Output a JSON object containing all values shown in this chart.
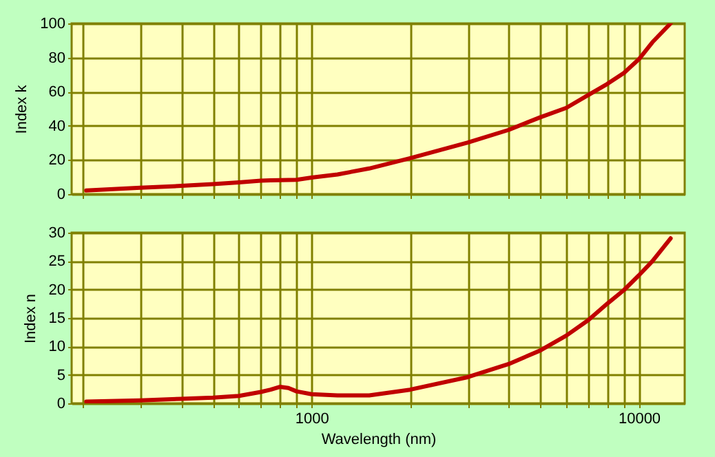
{
  "chart_data": [
    {
      "type": "line",
      "ylabel": "Index k",
      "x": [
        205,
        300,
        400,
        500,
        600,
        700,
        750,
        800,
        850,
        900,
        1000,
        1200,
        1500,
        2000,
        3000,
        4000,
        5000,
        6000,
        7000,
        8000,
        9000,
        10000,
        11000,
        12500
      ],
      "series": [
        {
          "color": "#c00000",
          "values": [
            2.1,
            3.7,
            4.8,
            5.8,
            6.9,
            7.9,
            8.1,
            8.2,
            8.3,
            8.4,
            9.7,
            11.5,
            15,
            21,
            30.2,
            37.6,
            45,
            50.5,
            58,
            64.5,
            71,
            79,
            89,
            100
          ]
        }
      ],
      "xlim": [
        185,
        13800
      ],
      "ylim": [
        0,
        100
      ],
      "yticks": [
        0,
        20,
        40,
        60,
        80,
        100
      ],
      "xticks": [
        {
          "value": 200,
          "label": null
        },
        {
          "value": 300,
          "label": null
        },
        {
          "value": 400,
          "label": null
        },
        {
          "value": 500,
          "label": null
        },
        {
          "value": 600,
          "label": null
        },
        {
          "value": 700,
          "label": null
        },
        {
          "value": 800,
          "label": null
        },
        {
          "value": 900,
          "label": null
        },
        {
          "value": 1000,
          "label": null
        },
        {
          "value": 2000,
          "label": null
        },
        {
          "value": 3000,
          "label": null
        },
        {
          "value": 4000,
          "label": null
        },
        {
          "value": 5000,
          "label": null
        },
        {
          "value": 6000,
          "label": null
        },
        {
          "value": 7000,
          "label": null
        },
        {
          "value": 8000,
          "label": null
        },
        {
          "value": 9000,
          "label": null
        },
        {
          "value": 10000,
          "label": null
        }
      ],
      "log": "x",
      "grid": true,
      "tick_labels": "y"
    },
    {
      "type": "line",
      "xlabel": "Wavelength (nm)",
      "ylabel": "Index n",
      "x": [
        205,
        300,
        400,
        500,
        600,
        700,
        750,
        800,
        850,
        900,
        1000,
        1200,
        1500,
        2000,
        3000,
        4000,
        5000,
        6000,
        7000,
        8000,
        9000,
        10000,
        11000,
        12500
      ],
      "series": [
        {
          "color": "#c00000",
          "values": [
            0.3,
            0.5,
            0.8,
            1.0,
            1.3,
            2.0,
            2.4,
            2.9,
            2.7,
            2.1,
            1.6,
            1.4,
            1.4,
            2.4,
            4.6,
            6.9,
            9.3,
            11.9,
            14.6,
            17.5,
            19.9,
            22.5,
            25,
            29
          ]
        }
      ],
      "xlim": [
        185,
        13800
      ],
      "ylim": [
        0,
        30
      ],
      "yticks": [
        0,
        5,
        10,
        15,
        20,
        25,
        30
      ],
      "xticks": [
        {
          "value": 200,
          "label": null
        },
        {
          "value": 300,
          "label": null
        },
        {
          "value": 400,
          "label": null
        },
        {
          "value": 500,
          "label": null
        },
        {
          "value": 600,
          "label": null
        },
        {
          "value": 700,
          "label": null
        },
        {
          "value": 800,
          "label": null
        },
        {
          "value": 900,
          "label": null
        },
        1000,
        {
          "value": 2000,
          "label": null
        },
        {
          "value": 3000,
          "label": null
        },
        {
          "value": 4000,
          "label": null
        },
        {
          "value": 5000,
          "label": null
        },
        {
          "value": 6000,
          "label": null
        },
        {
          "value": 7000,
          "label": null
        },
        {
          "value": 8000,
          "label": null
        },
        {
          "value": 9000,
          "label": null
        },
        10000
      ],
      "log": "x",
      "grid": true
    }
  ]
}
